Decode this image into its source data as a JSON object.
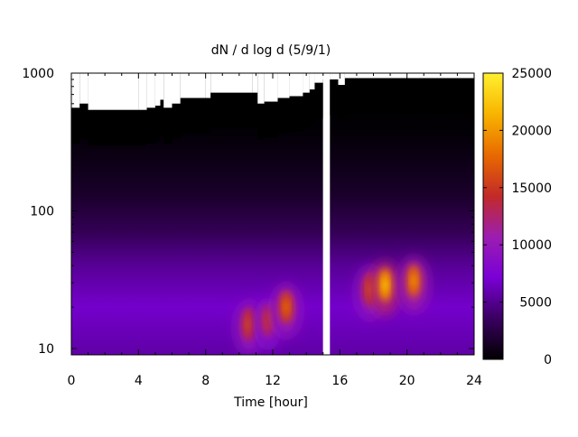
{
  "chart_data": {
    "type": "heatmap",
    "title": "dN / d log d (5/9/1)",
    "xlabel": "Time [hour]",
    "ylabel": "",
    "xlim": [
      0,
      24
    ],
    "ylim": [
      9,
      1000
    ],
    "y_scale": "log",
    "x_ticks": [
      0,
      4,
      8,
      12,
      16,
      20,
      24
    ],
    "y_ticks": [
      {
        "value": 10,
        "label": "10"
      },
      {
        "value": 100,
        "label": "100"
      },
      {
        "value": 1000,
        "label": "1000"
      }
    ],
    "colorbar": {
      "range": [
        0,
        25000
      ],
      "ticks": [
        0,
        5000,
        10000,
        15000,
        20000,
        25000
      ],
      "palette": [
        "#000000",
        "#3a0060",
        "#7a00d6",
        "#9c1eb0",
        "#c22a28",
        "#e86a00",
        "#f8b400",
        "#fff030"
      ]
    },
    "data_gap_hours": [
      15.0,
      15.4
    ],
    "nodata_top_diameter_by_hour": [
      [
        0,
        560
      ],
      [
        0.5,
        600
      ],
      [
        1,
        540
      ],
      [
        4,
        540
      ],
      [
        4.5,
        560
      ],
      [
        5,
        580
      ],
      [
        5.3,
        640
      ],
      [
        5.5,
        560
      ],
      [
        6,
        600
      ],
      [
        6.5,
        660
      ],
      [
        8,
        660
      ],
      [
        8.3,
        720
      ],
      [
        10.8,
        720
      ],
      [
        11.1,
        600
      ],
      [
        11.5,
        620
      ],
      [
        12.3,
        660
      ],
      [
        13,
        680
      ],
      [
        13.8,
        720
      ],
      [
        14.2,
        760
      ],
      [
        14.5,
        850
      ],
      [
        15.0,
        900
      ],
      [
        15.4,
        900
      ],
      [
        15.9,
        820
      ],
      [
        16.3,
        920
      ],
      [
        24,
        920
      ]
    ],
    "hotspots": [
      {
        "hour": 10.6,
        "diameter": 15,
        "value": 17000
      },
      {
        "hour": 11.7,
        "diameter": 16,
        "value": 15000
      },
      {
        "hour": 12.8,
        "diameter": 20,
        "value": 18000
      },
      {
        "hour": 17.8,
        "diameter": 27,
        "value": 17000
      },
      {
        "hour": 18.7,
        "diameter": 29,
        "value": 22500
      },
      {
        "hour": 20.4,
        "diameter": 31,
        "value": 20000
      }
    ]
  }
}
